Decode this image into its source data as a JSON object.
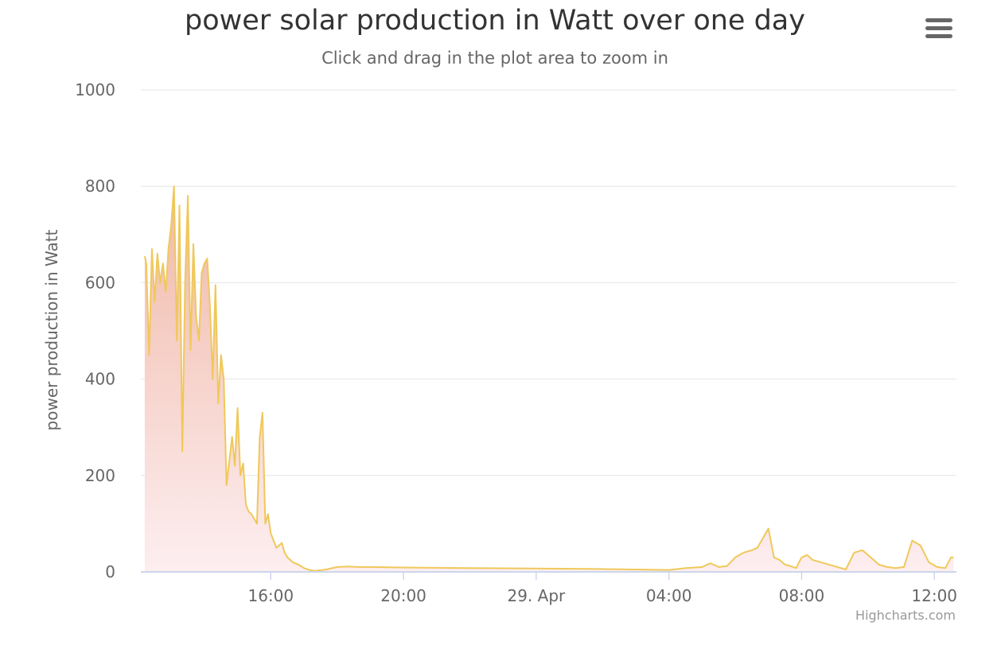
{
  "chart_data": {
    "type": "area",
    "title": "power solar production in Watt over one day",
    "subtitle": "Click and drag in the plot area to zoom in",
    "xlabel": "",
    "ylabel": "power production in Watt",
    "x_axis_type": "datetime",
    "xlim": [
      "28 Apr 12:05",
      "29 Apr 12:40"
    ],
    "ylim": [
      0,
      1000
    ],
    "y_ticks": [
      0,
      200,
      400,
      600,
      800,
      1000
    ],
    "x_ticks": [
      {
        "time": "28 Apr 16:00",
        "label": "16:00"
      },
      {
        "time": "28 Apr 20:00",
        "label": "20:00"
      },
      {
        "time": "29 Apr 00:00",
        "label": "29. Apr"
      },
      {
        "time": "29 Apr 04:00",
        "label": "04:00"
      },
      {
        "time": "29 Apr 08:00",
        "label": "08:00"
      },
      {
        "time": "29 Apr 12:00",
        "label": "12:00"
      }
    ],
    "grid": true,
    "legend": "none",
    "line_color": "#f0c85a",
    "fill_top_color": "#f0b9a8",
    "fill_bottom_color": "#fdeef0",
    "series": [
      {
        "x": [
          "28 Apr 12:12",
          "28 Apr 12:15",
          "28 Apr 12:20",
          "28 Apr 12:25",
          "28 Apr 12:30",
          "28 Apr 12:35",
          "28 Apr 12:40",
          "28 Apr 12:45",
          "28 Apr 12:50",
          "28 Apr 12:55",
          "28 Apr 13:00",
          "28 Apr 13:05",
          "28 Apr 13:10",
          "28 Apr 13:15",
          "28 Apr 13:20",
          "28 Apr 13:25",
          "28 Apr 13:30",
          "28 Apr 13:35",
          "28 Apr 13:40",
          "28 Apr 13:45",
          "28 Apr 13:50",
          "28 Apr 13:55",
          "28 Apr 14:00",
          "28 Apr 14:05",
          "28 Apr 14:10",
          "28 Apr 14:15",
          "28 Apr 14:20",
          "28 Apr 14:25",
          "28 Apr 14:30",
          "28 Apr 14:35",
          "28 Apr 14:40",
          "28 Apr 14:45",
          "28 Apr 14:50",
          "28 Apr 14:55",
          "28 Apr 15:00",
          "28 Apr 15:05",
          "28 Apr 15:10",
          "28 Apr 15:15",
          "28 Apr 15:20",
          "28 Apr 15:25",
          "28 Apr 15:30",
          "28 Apr 15:35",
          "28 Apr 15:40",
          "28 Apr 15:45",
          "28 Apr 15:50",
          "28 Apr 15:55",
          "28 Apr 16:00",
          "28 Apr 16:05",
          "28 Apr 16:10",
          "28 Apr 16:15",
          "28 Apr 16:20",
          "28 Apr 16:25",
          "28 Apr 16:30",
          "28 Apr 16:40",
          "28 Apr 16:50",
          "28 Apr 17:00",
          "28 Apr 17:10",
          "28 Apr 17:20",
          "28 Apr 17:40",
          "28 Apr 18:00",
          "28 Apr 18:20",
          "28 Apr 18:40",
          "28 Apr 19:00",
          "28 Apr 20:00",
          "28 Apr 22:00",
          "29 Apr 00:00",
          "29 Apr 02:00",
          "29 Apr 04:00",
          "29 Apr 04:30",
          "29 Apr 05:00",
          "29 Apr 05:15",
          "29 Apr 05:30",
          "29 Apr 05:45",
          "29 Apr 06:00",
          "29 Apr 06:15",
          "29 Apr 06:30",
          "29 Apr 06:40",
          "29 Apr 06:50",
          "29 Apr 07:00",
          "29 Apr 07:10",
          "29 Apr 07:20",
          "29 Apr 07:30",
          "29 Apr 07:40",
          "29 Apr 07:50",
          "29 Apr 08:00",
          "29 Apr 08:10",
          "29 Apr 08:20",
          "29 Apr 08:35",
          "29 Apr 08:50",
          "29 Apr 09:05",
          "29 Apr 09:20",
          "29 Apr 09:35",
          "29 Apr 09:50",
          "29 Apr 10:05",
          "29 Apr 10:20",
          "29 Apr 10:35",
          "29 Apr 10:50",
          "29 Apr 11:05",
          "29 Apr 11:20",
          "29 Apr 11:35",
          "29 Apr 11:50",
          "29 Apr 12:05",
          "29 Apr 12:20",
          "29 Apr 12:30",
          "29 Apr 12:35"
        ],
        "y": [
          655,
          640,
          450,
          670,
          560,
          660,
          600,
          640,
          580,
          670,
          720,
          800,
          480,
          760,
          250,
          600,
          780,
          460,
          680,
          530,
          480,
          620,
          640,
          650,
          550,
          400,
          595,
          350,
          450,
          400,
          180,
          230,
          280,
          220,
          340,
          200,
          225,
          140,
          125,
          120,
          110,
          100,
          280,
          330,
          100,
          120,
          80,
          65,
          50,
          55,
          60,
          40,
          30,
          20,
          15,
          8,
          4,
          2,
          5,
          10,
          11,
          10,
          10,
          9,
          8,
          7,
          6,
          4,
          8,
          10,
          18,
          10,
          12,
          30,
          40,
          45,
          50,
          70,
          90,
          30,
          25,
          15,
          12,
          8,
          30,
          35,
          25,
          20,
          15,
          10,
          5,
          40,
          45,
          30,
          15,
          10,
          8,
          10,
          65,
          55,
          20,
          10,
          8,
          30,
          30
        ]
      }
    ]
  }
}
